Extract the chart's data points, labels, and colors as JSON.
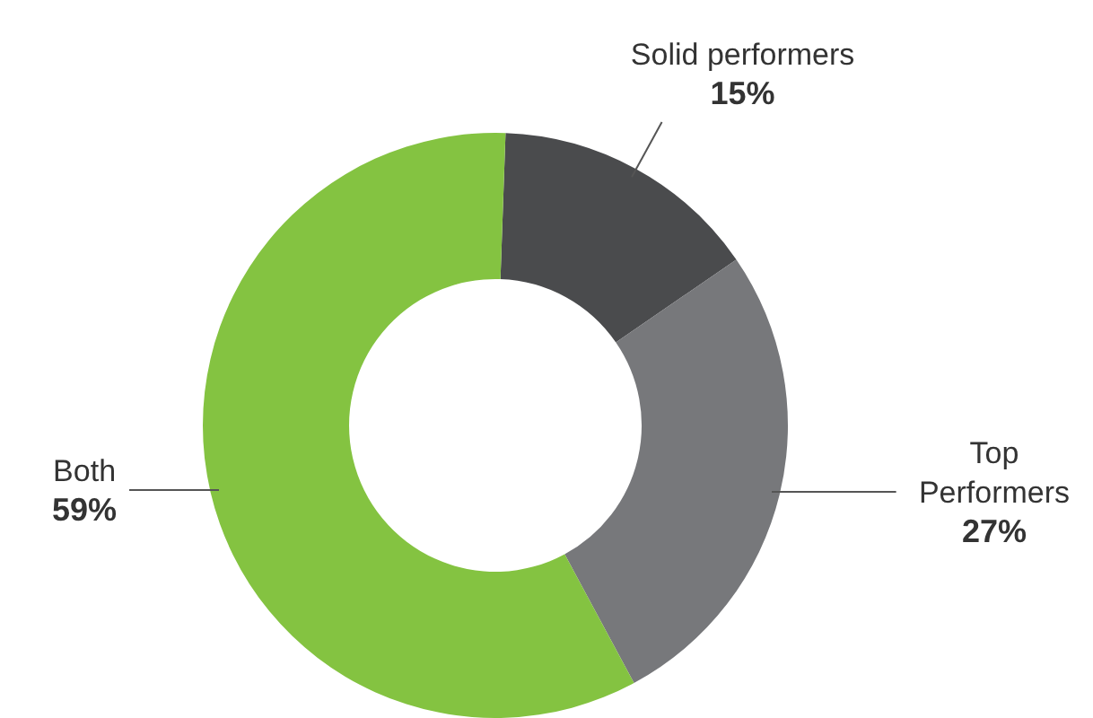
{
  "chart_data": {
    "type": "donut",
    "categories": [
      "Solid performers",
      "Top Performers",
      "Both"
    ],
    "values": [
      15,
      27,
      59
    ],
    "value_labels": [
      "15%",
      "27%",
      "59%"
    ],
    "colors": [
      "#4a4b4d",
      "#77787b",
      "#84c341"
    ],
    "legend": false
  }
}
